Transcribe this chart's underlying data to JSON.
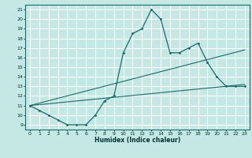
{
  "background_color": "#c5e8e4",
  "grid_color": "#ffffff",
  "line_color": "#1a6b6b",
  "xlabel": "Humidex (Indice chaleur)",
  "xlim": [
    -0.5,
    23.5
  ],
  "ylim": [
    8.5,
    21.5
  ],
  "yticks": [
    9,
    10,
    11,
    12,
    13,
    14,
    15,
    16,
    17,
    18,
    19,
    20,
    21
  ],
  "xticks": [
    0,
    1,
    2,
    3,
    4,
    5,
    6,
    7,
    8,
    9,
    10,
    11,
    12,
    13,
    14,
    15,
    16,
    17,
    18,
    19,
    20,
    21,
    22,
    23
  ],
  "main_series": {
    "x": [
      0,
      1,
      2,
      3,
      4,
      5,
      6,
      7,
      8,
      9,
      10,
      11,
      12,
      13,
      14,
      15,
      16,
      17,
      18,
      19,
      20,
      21,
      22,
      23
    ],
    "y": [
      11,
      10.5,
      10,
      9.5,
      9,
      9,
      9,
      10,
      11.5,
      12,
      16.5,
      18.5,
      19,
      21,
      20,
      16.5,
      16.5,
      17,
      17.5,
      15.5,
      14,
      13,
      13,
      13
    ]
  },
  "line1": {
    "x": [
      0,
      23
    ],
    "y": [
      11,
      13.2
    ]
  },
  "line2": {
    "x": [
      0,
      23
    ],
    "y": [
      11,
      16.8
    ]
  },
  "line3": {
    "x": [
      0,
      23
    ],
    "y": [
      11,
      13.2
    ]
  }
}
